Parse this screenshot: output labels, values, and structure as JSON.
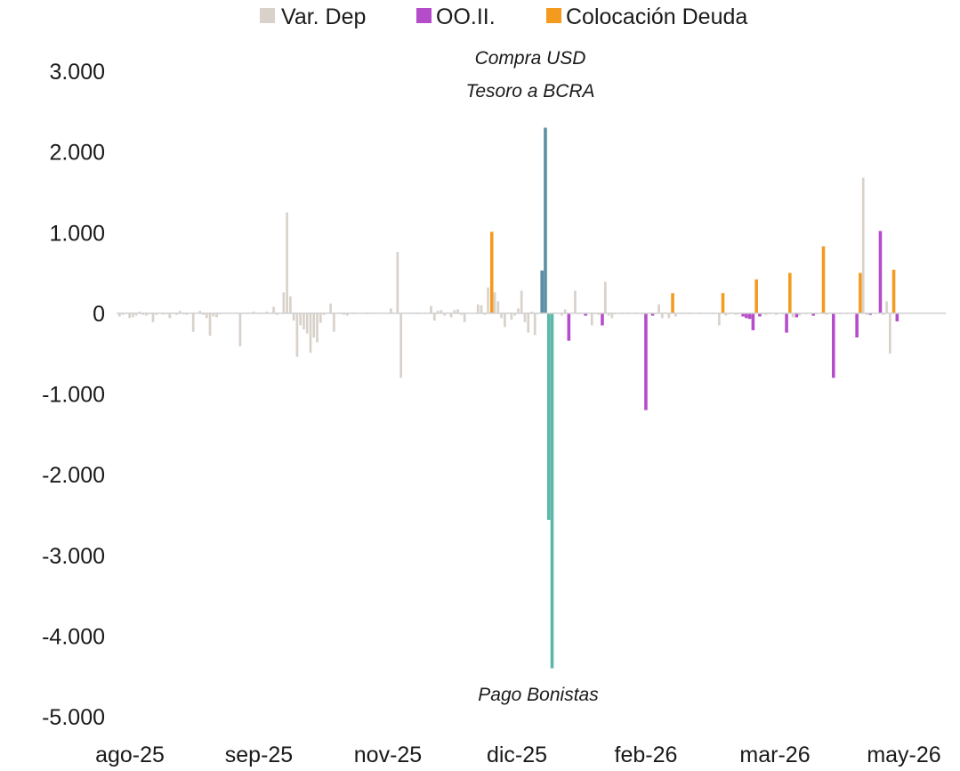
{
  "chart_data": {
    "type": "bar",
    "legend_position": "top-center",
    "legend": [
      {
        "key": "var_dep",
        "label": "Var. Dep",
        "color": "#d9d2cb"
      },
      {
        "key": "oo_ii",
        "label": "OO.II.",
        "color": "#b54cc9"
      },
      {
        "key": "colocacion",
        "label": "Colocación Deuda",
        "color": "#f39a1f"
      }
    ],
    "special_colors": {
      "compra_usd": "#5b8fa3",
      "pago_bonistas": "#5bb8a8"
    },
    "ylim": [
      -5000,
      3000
    ],
    "yticks": [
      3000,
      2000,
      1000,
      0,
      -1000,
      -2000,
      -3000,
      -4000,
      -5000
    ],
    "ytick_labels": [
      "3.000",
      "2.000",
      "1.000",
      "0",
      "-1.000",
      "-2.000",
      "-3.000",
      "-4.000",
      "-5.000"
    ],
    "xlabels": [
      "ago-25",
      "sep-25",
      "nov-25",
      "dic-25",
      "feb-26",
      "mar-26",
      "may-26"
    ],
    "n_slots": 247,
    "annotations": [
      {
        "key": "compra",
        "lines": [
          "Compra USD",
          "Tesoro a BCRA"
        ]
      },
      {
        "key": "pago",
        "lines": [
          "Pago Bonistas"
        ]
      }
    ],
    "bars": [
      {
        "i": 0,
        "s": "var_dep",
        "v": -40
      },
      {
        "i": 1,
        "s": "var_dep",
        "v": -20
      },
      {
        "i": 2,
        "s": "var_dep",
        "v": 10
      },
      {
        "i": 3,
        "s": "var_dep",
        "v": -60
      },
      {
        "i": 4,
        "s": "var_dep",
        "v": -50
      },
      {
        "i": 5,
        "s": "var_dep",
        "v": -30
      },
      {
        "i": 6,
        "s": "var_dep",
        "v": 20
      },
      {
        "i": 7,
        "s": "var_dep",
        "v": -20
      },
      {
        "i": 8,
        "s": "var_dep",
        "v": -30
      },
      {
        "i": 9,
        "s": "var_dep",
        "v": -10
      },
      {
        "i": 10,
        "s": "var_dep",
        "v": -110
      },
      {
        "i": 11,
        "s": "var_dep",
        "v": -20
      },
      {
        "i": 13,
        "s": "var_dep",
        "v": -15
      },
      {
        "i": 14,
        "s": "var_dep",
        "v": -10
      },
      {
        "i": 15,
        "s": "var_dep",
        "v": -60
      },
      {
        "i": 16,
        "s": "var_dep",
        "v": 10
      },
      {
        "i": 17,
        "s": "var_dep",
        "v": -20
      },
      {
        "i": 18,
        "s": "var_dep",
        "v": 30
      },
      {
        "i": 19,
        "s": "var_dep",
        "v": -10
      },
      {
        "i": 20,
        "s": "var_dep",
        "v": -20
      },
      {
        "i": 22,
        "s": "var_dep",
        "v": -230
      },
      {
        "i": 24,
        "s": "var_dep",
        "v": 30
      },
      {
        "i": 25,
        "s": "var_dep",
        "v": -20
      },
      {
        "i": 26,
        "s": "var_dep",
        "v": -60
      },
      {
        "i": 27,
        "s": "var_dep",
        "v": -280
      },
      {
        "i": 28,
        "s": "var_dep",
        "v": -40
      },
      {
        "i": 29,
        "s": "var_dep",
        "v": -50
      },
      {
        "i": 30,
        "s": "var_dep",
        "v": -10
      },
      {
        "i": 36,
        "s": "var_dep",
        "v": -410
      },
      {
        "i": 38,
        "s": "var_dep",
        "v": -10
      },
      {
        "i": 40,
        "s": "var_dep",
        "v": 20
      },
      {
        "i": 41,
        "s": "var_dep",
        "v": 10
      },
      {
        "i": 42,
        "s": "var_dep",
        "v": -10
      },
      {
        "i": 44,
        "s": "var_dep",
        "v": 20
      },
      {
        "i": 46,
        "s": "var_dep",
        "v": 80
      },
      {
        "i": 47,
        "s": "var_dep",
        "v": -20
      },
      {
        "i": 49,
        "s": "var_dep",
        "v": 260
      },
      {
        "i": 50,
        "s": "var_dep",
        "v": 1250
      },
      {
        "i": 51,
        "s": "var_dep",
        "v": 210
      },
      {
        "i": 52,
        "s": "var_dep",
        "v": -90
      },
      {
        "i": 53,
        "s": "var_dep",
        "v": -540
      },
      {
        "i": 54,
        "s": "var_dep",
        "v": -150
      },
      {
        "i": 55,
        "s": "var_dep",
        "v": -200
      },
      {
        "i": 56,
        "s": "var_dep",
        "v": -250
      },
      {
        "i": 57,
        "s": "var_dep",
        "v": -490
      },
      {
        "i": 58,
        "s": "var_dep",
        "v": -300
      },
      {
        "i": 59,
        "s": "var_dep",
        "v": -360
      },
      {
        "i": 60,
        "s": "var_dep",
        "v": -120
      },
      {
        "i": 61,
        "s": "var_dep",
        "v": -20
      },
      {
        "i": 63,
        "s": "var_dep",
        "v": 120
      },
      {
        "i": 64,
        "s": "var_dep",
        "v": -230
      },
      {
        "i": 66,
        "s": "var_dep",
        "v": 10
      },
      {
        "i": 67,
        "s": "var_dep",
        "v": -20
      },
      {
        "i": 68,
        "s": "var_dep",
        "v": -30
      },
      {
        "i": 70,
        "s": "var_dep",
        "v": -10
      },
      {
        "i": 74,
        "s": "var_dep",
        "v": -10
      },
      {
        "i": 76,
        "s": "var_dep",
        "v": 10
      },
      {
        "i": 81,
        "s": "var_dep",
        "v": 60
      },
      {
        "i": 83,
        "s": "var_dep",
        "v": 760
      },
      {
        "i": 84,
        "s": "var_dep",
        "v": -800
      },
      {
        "i": 87,
        "s": "var_dep",
        "v": 10
      },
      {
        "i": 89,
        "s": "var_dep",
        "v": -10
      },
      {
        "i": 91,
        "s": "var_dep",
        "v": 10
      },
      {
        "i": 93,
        "s": "var_dep",
        "v": 90
      },
      {
        "i": 94,
        "s": "var_dep",
        "v": -90
      },
      {
        "i": 95,
        "s": "var_dep",
        "v": 30
      },
      {
        "i": 96,
        "s": "var_dep",
        "v": 40
      },
      {
        "i": 97,
        "s": "var_dep",
        "v": -30
      },
      {
        "i": 98,
        "s": "var_dep",
        "v": 10
      },
      {
        "i": 99,
        "s": "var_dep",
        "v": -50
      },
      {
        "i": 100,
        "s": "var_dep",
        "v": 40
      },
      {
        "i": 101,
        "s": "var_dep",
        "v": 50
      },
      {
        "i": 102,
        "s": "var_dep",
        "v": -20
      },
      {
        "i": 103,
        "s": "var_dep",
        "v": -110
      },
      {
        "i": 107,
        "s": "var_dep",
        "v": 110
      },
      {
        "i": 108,
        "s": "var_dep",
        "v": 100
      },
      {
        "i": 109,
        "s": "var_dep",
        "v": -20
      },
      {
        "i": 110,
        "s": "var_dep",
        "v": 320
      },
      {
        "i": 111,
        "s": "colocacion",
        "v": 1010
      },
      {
        "i": 112,
        "s": "var_dep",
        "v": 260
      },
      {
        "i": 113,
        "s": "var_dep",
        "v": 150
      },
      {
        "i": 114,
        "s": "var_dep",
        "v": -60
      },
      {
        "i": 115,
        "s": "var_dep",
        "v": -170
      },
      {
        "i": 116,
        "s": "var_dep",
        "v": 10
      },
      {
        "i": 117,
        "s": "var_dep",
        "v": -80
      },
      {
        "i": 118,
        "s": "var_dep",
        "v": -30
      },
      {
        "i": 119,
        "s": "var_dep",
        "v": 60
      },
      {
        "i": 120,
        "s": "var_dep",
        "v": 280
      },
      {
        "i": 121,
        "s": "var_dep",
        "v": -110
      },
      {
        "i": 122,
        "s": "var_dep",
        "v": -240
      },
      {
        "i": 123,
        "s": "var_dep",
        "v": 20
      },
      {
        "i": 124,
        "s": "var_dep",
        "v": -270
      },
      {
        "i": 125,
        "s": "var_dep",
        "v": -10
      },
      {
        "i": 126,
        "s": "compra_usd",
        "v": 530
      },
      {
        "i": 127,
        "s": "compra_usd",
        "v": 2300
      },
      {
        "i": 128,
        "s": "pago_bonistas",
        "v": -2560
      },
      {
        "i": 129,
        "s": "pago_bonistas",
        "v": -4400
      },
      {
        "i": 130,
        "s": "var_dep",
        "v": 10
      },
      {
        "i": 132,
        "s": "var_dep",
        "v": -30
      },
      {
        "i": 133,
        "s": "var_dep",
        "v": 50
      },
      {
        "i": 134,
        "s": "oo_ii",
        "v": -340
      },
      {
        "i": 136,
        "s": "var_dep",
        "v": 280
      },
      {
        "i": 137,
        "s": "var_dep",
        "v": -10
      },
      {
        "i": 139,
        "s": "oo_ii",
        "v": -30
      },
      {
        "i": 141,
        "s": "var_dep",
        "v": -150
      },
      {
        "i": 143,
        "s": "var_dep",
        "v": -20
      },
      {
        "i": 144,
        "s": "oo_ii",
        "v": -150
      },
      {
        "i": 145,
        "s": "var_dep",
        "v": 390
      },
      {
        "i": 146,
        "s": "var_dep",
        "v": -30
      },
      {
        "i": 147,
        "s": "var_dep",
        "v": -60
      },
      {
        "i": 148,
        "s": "var_dep",
        "v": -10
      },
      {
        "i": 150,
        "s": "var_dep",
        "v": -10
      },
      {
        "i": 152,
        "s": "var_dep",
        "v": -10
      },
      {
        "i": 154,
        "s": "var_dep",
        "v": -10
      },
      {
        "i": 156,
        "s": "var_dep",
        "v": -10
      },
      {
        "i": 157,
        "s": "oo_ii",
        "v": -1200
      },
      {
        "i": 159,
        "s": "oo_ii",
        "v": -30
      },
      {
        "i": 160,
        "s": "var_dep",
        "v": -10
      },
      {
        "i": 161,
        "s": "var_dep",
        "v": 110
      },
      {
        "i": 162,
        "s": "var_dep",
        "v": -60
      },
      {
        "i": 163,
        "s": "var_dep",
        "v": 10
      },
      {
        "i": 164,
        "s": "var_dep",
        "v": -60
      },
      {
        "i": 165,
        "s": "colocacion",
        "v": 250
      },
      {
        "i": 166,
        "s": "var_dep",
        "v": -40
      },
      {
        "i": 168,
        "s": "var_dep",
        "v": -10
      },
      {
        "i": 170,
        "s": "var_dep",
        "v": -10
      },
      {
        "i": 173,
        "s": "var_dep",
        "v": -10
      },
      {
        "i": 177,
        "s": "var_dep",
        "v": -10
      },
      {
        "i": 179,
        "s": "var_dep",
        "v": -150
      },
      {
        "i": 180,
        "s": "colocacion",
        "v": 250
      },
      {
        "i": 181,
        "s": "var_dep",
        "v": -30
      },
      {
        "i": 182,
        "s": "var_dep",
        "v": -10
      },
      {
        "i": 183,
        "s": "var_dep",
        "v": 10
      },
      {
        "i": 184,
        "s": "var_dep",
        "v": -20
      },
      {
        "i": 185,
        "s": "var_dep",
        "v": -10
      },
      {
        "i": 186,
        "s": "oo_ii",
        "v": -40
      },
      {
        "i": 187,
        "s": "oo_ii",
        "v": -60
      },
      {
        "i": 188,
        "s": "oo_ii",
        "v": -70
      },
      {
        "i": 189,
        "s": "oo_ii",
        "v": -210
      },
      {
        "i": 190,
        "s": "colocacion",
        "v": 420
      },
      {
        "i": 191,
        "s": "oo_ii",
        "v": -40
      },
      {
        "i": 192,
        "s": "var_dep",
        "v": -10
      },
      {
        "i": 193,
        "s": "var_dep",
        "v": -20
      },
      {
        "i": 194,
        "s": "var_dep",
        "v": -10
      },
      {
        "i": 196,
        "s": "var_dep",
        "v": -20
      },
      {
        "i": 198,
        "s": "var_dep",
        "v": -10
      },
      {
        "i": 199,
        "s": "oo_ii",
        "v": -240
      },
      {
        "i": 200,
        "s": "colocacion",
        "v": 500
      },
      {
        "i": 201,
        "s": "var_dep",
        "v": -50
      },
      {
        "i": 202,
        "s": "oo_ii",
        "v": -50
      },
      {
        "i": 203,
        "s": "var_dep",
        "v": -30
      },
      {
        "i": 205,
        "s": "var_dep",
        "v": -10
      },
      {
        "i": 207,
        "s": "oo_ii",
        "v": -30
      },
      {
        "i": 208,
        "s": "var_dep",
        "v": -10
      },
      {
        "i": 210,
        "s": "colocacion",
        "v": 830
      },
      {
        "i": 211,
        "s": "var_dep",
        "v": -20
      },
      {
        "i": 213,
        "s": "oo_ii",
        "v": -800
      },
      {
        "i": 215,
        "s": "var_dep",
        "v": -10
      },
      {
        "i": 217,
        "s": "var_dep",
        "v": -10
      },
      {
        "i": 220,
        "s": "oo_ii",
        "v": -300
      },
      {
        "i": 221,
        "s": "colocacion",
        "v": 500
      },
      {
        "i": 222,
        "s": "var_dep",
        "v": 1680
      },
      {
        "i": 223,
        "s": "var_dep",
        "v": -20
      },
      {
        "i": 224,
        "s": "oo_ii",
        "v": -20
      },
      {
        "i": 227,
        "s": "oo_ii",
        "v": 1020
      },
      {
        "i": 228,
        "s": "var_dep",
        "v": -20
      },
      {
        "i": 229,
        "s": "var_dep",
        "v": 150
      },
      {
        "i": 230,
        "s": "var_dep",
        "v": -500
      },
      {
        "i": 231,
        "s": "colocacion",
        "v": 540
      },
      {
        "i": 232,
        "s": "oo_ii",
        "v": -100
      }
    ]
  }
}
